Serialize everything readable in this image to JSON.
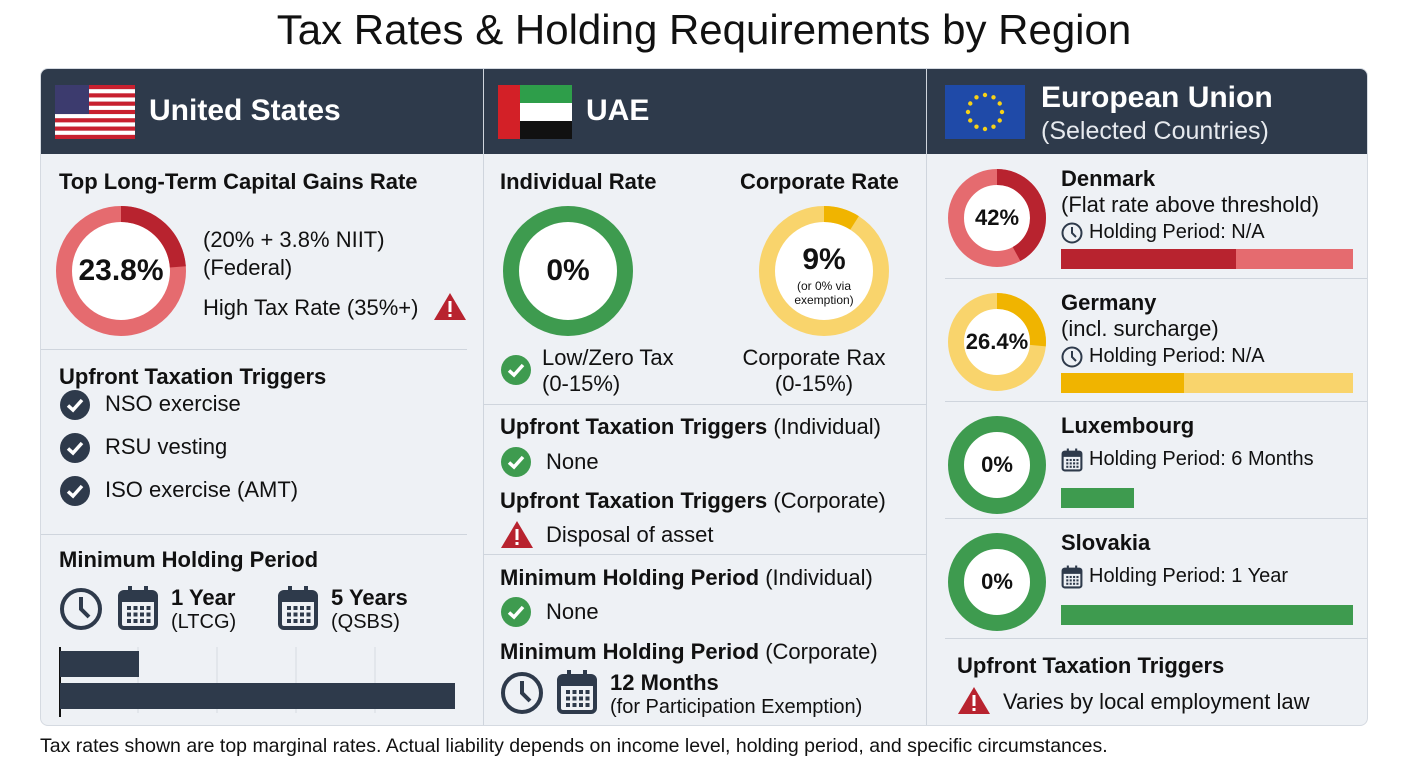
{
  "title": "Tax Rates & Holding Requirements by Region",
  "colors": {
    "header": "#2e3a4b",
    "red_dark": "#b8232f",
    "red_light": "#e56b6f",
    "green": "#3e9b4f",
    "yellow_dark": "#f0b400",
    "yellow_light": "#f9d46c",
    "icon": "#2e3a4b"
  },
  "us": {
    "name": "United States",
    "flag": "us-flag-icon",
    "rate_heading": "Top Long-Term Capital Gains Rate",
    "rate": "23.8%",
    "rate_value": 23.8,
    "rate_note1": "(20% + 3.8% NIIT)",
    "rate_note2": "(Federal)",
    "high_tax": "High Tax Rate (35%+)",
    "triggers_heading": "Upfront Taxation Triggers",
    "triggers": [
      "NSO exercise",
      "RSU vesting",
      "ISO exercise (AMT)"
    ],
    "holding_heading": "Minimum Holding Period",
    "holding": [
      {
        "value": "1 Year",
        "note": "(LTCG)",
        "years": 1
      },
      {
        "value": "5 Years",
        "note": "(QSBS)",
        "years": 5
      }
    ],
    "axis_max_years": 5
  },
  "uae": {
    "name": "UAE",
    "flag": "uae-flag-icon",
    "individual_heading": "Individual Rate",
    "individual_rate": "0%",
    "individual_value": 0,
    "individual_note1": "Low/Zero Tax",
    "individual_note2": "(0-15%)",
    "corporate_heading": "Corporate Rate",
    "corporate_rate": "9%",
    "corporate_value": 9,
    "corporate_sub1": "(or 0% via",
    "corporate_sub2": "exemption)",
    "corporate_note1": "Corporate Rax",
    "corporate_note2": "(0-15%)",
    "trig_ind_bold": "Upfront Taxation Triggers",
    "trig_ind_suffix": " (Individual)",
    "trig_ind_value": "None",
    "trig_corp_bold": "Upfront Taxation Triggers",
    "trig_corp_suffix": " (Corporate)",
    "trig_corp_value": "Disposal of asset",
    "hold_ind_bold": "Minimum Holding Period",
    "hold_ind_suffix": " (Individual)",
    "hold_ind_value": "None",
    "hold_corp_bold": "Minimum Holding Period",
    "hold_corp_suffix": " (Corporate)",
    "hold_corp_value": "12 Months",
    "hold_corp_note": "(for Participation Exemption)"
  },
  "eu": {
    "name": "European Union",
    "subtitle": "(Selected Countries)",
    "flag": "eu-flag-icon",
    "countries": [
      {
        "name": "Denmark",
        "rate": "42%",
        "value": 42,
        "note": "(Flat rate above threshold)",
        "holding": "Holding Period: N/A",
        "icon": "clock-icon",
        "color": "red",
        "bar_fill": 0.6
      },
      {
        "name": "Germany",
        "rate": "26.4%",
        "value": 26.4,
        "note": "(incl. surcharge)",
        "holding": "Holding Period: N/A",
        "icon": "clock-icon",
        "color": "yellow",
        "bar_fill": 0.42
      },
      {
        "name": "Luxembourg",
        "rate": "0%",
        "value": 0,
        "note": "",
        "holding": "Holding Period: 6 Months",
        "icon": "calendar-icon",
        "color": "green",
        "bar_fill": 0.25
      },
      {
        "name": "Slovakia",
        "rate": "0%",
        "value": 0,
        "note": "",
        "holding": "Holding Period: 1 Year",
        "icon": "calendar-icon",
        "color": "green",
        "bar_fill": 1
      }
    ],
    "triggers_heading": "Upfront Taxation Triggers",
    "triggers_value": "Varies by local employment law"
  },
  "footnote": "Tax rates shown are top marginal rates. Actual liability depends on income level, holding period, and specific circumstances."
}
